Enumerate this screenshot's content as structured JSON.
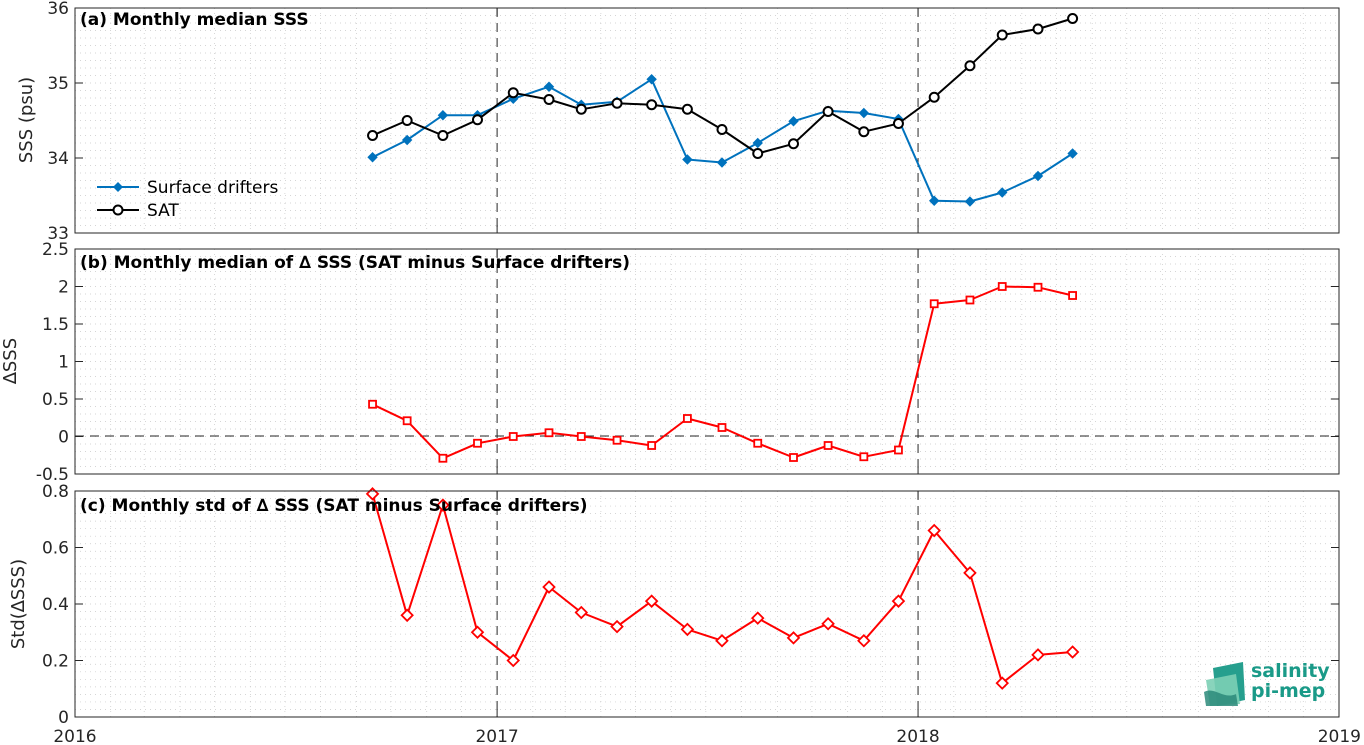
{
  "chart_data": [
    {
      "type": "line",
      "title": "(a) Monthly median SSS",
      "ylabel": "SSS (psu)",
      "xlim": [
        "2016",
        "2019"
      ],
      "ylim": [
        33,
        36
      ],
      "yticks": [
        33,
        34,
        35,
        36
      ],
      "grid": true,
      "legend": "left",
      "x": [
        "2016-09",
        "2016-10",
        "2016-11",
        "2016-12",
        "2017-01",
        "2017-02",
        "2017-03",
        "2017-04",
        "2017-05",
        "2017-06",
        "2017-07",
        "2017-08",
        "2017-09",
        "2017-10",
        "2017-11",
        "2017-12",
        "2018-01",
        "2018-02",
        "2018-03",
        "2018-04",
        "2018-05"
      ],
      "series": [
        {
          "name": "Surface drifters",
          "color": "#0072BD",
          "marker": "diamond",
          "values": [
            34.01,
            34.24,
            34.57,
            34.57,
            34.79,
            34.95,
            34.71,
            34.75,
            35.05,
            33.98,
            33.94,
            34.2,
            34.49,
            34.63,
            34.6,
            34.52,
            33.43,
            33.42,
            33.54,
            33.76,
            34.06
          ]
        },
        {
          "name": "SAT",
          "color": "#000000",
          "marker": "circle",
          "values": [
            34.3,
            34.5,
            34.3,
            34.51,
            34.87,
            34.78,
            34.65,
            34.73,
            34.71,
            34.65,
            34.38,
            34.06,
            34.19,
            34.62,
            34.35,
            34.46,
            34.81,
            35.23,
            35.64,
            35.72,
            35.86
          ]
        }
      ]
    },
    {
      "type": "line",
      "title": "(b) Monthly median of ∆ SSS (SAT minus Surface drifters)",
      "ylabel": "∆SSS",
      "xlim": [
        "2016",
        "2019"
      ],
      "ylim": [
        -0.5,
        2.5
      ],
      "yticks": [
        -0.5,
        0,
        0.5,
        1,
        1.5,
        2,
        2.5
      ],
      "ytick_labels": [
        "-0.5",
        "0",
        "0.5",
        "1",
        "1.5",
        "2",
        "2.5"
      ],
      "grid": true,
      "x": [
        "2016-09",
        "2016-10",
        "2016-11",
        "2016-12",
        "2017-01",
        "2017-02",
        "2017-03",
        "2017-04",
        "2017-05",
        "2017-06",
        "2017-07",
        "2017-08",
        "2017-09",
        "2017-10",
        "2017-11",
        "2017-12",
        "2018-01",
        "2018-02",
        "2018-03",
        "2018-04",
        "2018-05"
      ],
      "series": [
        {
          "color": "#FF0000",
          "marker": "square",
          "values": [
            0.43,
            0.21,
            -0.29,
            -0.09,
            0.0,
            0.05,
            0.0,
            -0.05,
            -0.12,
            0.24,
            0.12,
            -0.09,
            -0.28,
            -0.12,
            -0.27,
            -0.18,
            1.77,
            1.82,
            2.0,
            1.99,
            1.88
          ]
        }
      ]
    },
    {
      "type": "line",
      "title": "(c) Monthly std of ∆ SSS (SAT minus Surface drifters)",
      "ylabel": "Std(∆SSS)",
      "xlim": [
        "2016",
        "2019"
      ],
      "ylim": [
        0,
        0.8
      ],
      "yticks": [
        0,
        0.2,
        0.4,
        0.6,
        0.8
      ],
      "ytick_labels": [
        "0",
        "0.2",
        "0.4",
        "0.6",
        "0.8"
      ],
      "xticks": [
        "2016",
        "2017",
        "2018",
        "2019"
      ],
      "grid": true,
      "x": [
        "2016-09",
        "2016-10",
        "2016-11",
        "2016-12",
        "2017-01",
        "2017-02",
        "2017-03",
        "2017-04",
        "2017-05",
        "2017-06",
        "2017-07",
        "2017-08",
        "2017-09",
        "2017-10",
        "2017-11",
        "2017-12",
        "2018-01",
        "2018-02",
        "2018-03",
        "2018-04",
        "2018-05"
      ],
      "series": [
        {
          "color": "#FF0000",
          "marker": "diamond",
          "values": [
            0.79,
            0.36,
            0.75,
            0.3,
            0.2,
            0.46,
            0.37,
            0.32,
            0.41,
            0.31,
            0.27,
            0.35,
            0.28,
            0.33,
            0.27,
            0.41,
            0.66,
            0.51,
            0.12,
            0.22,
            0.23
          ]
        }
      ]
    }
  ],
  "logo": {
    "line1": "salinity",
    "line2": "pi-mep",
    "colors": [
      "#1a9a88",
      "#7ccfb5",
      "#2b8a7a"
    ]
  }
}
